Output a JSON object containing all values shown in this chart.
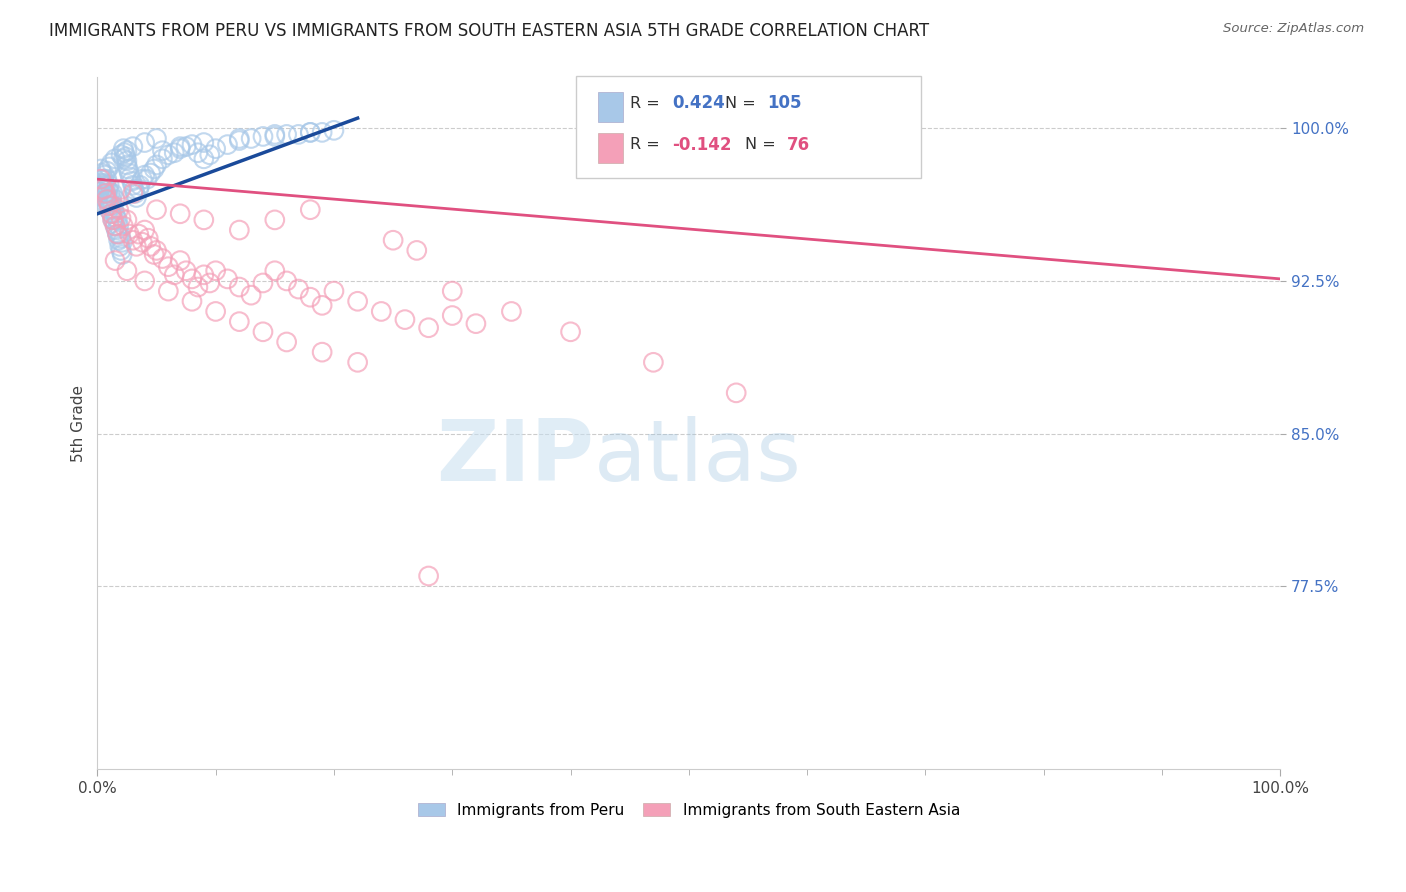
{
  "title": "IMMIGRANTS FROM PERU VS IMMIGRANTS FROM SOUTH EASTERN ASIA 5TH GRADE CORRELATION CHART",
  "source_text": "Source: ZipAtlas.com",
  "ylabel": "5th Grade",
  "legend_blue_R": "0.424",
  "legend_blue_N": "105",
  "legend_pink_R": "-0.142",
  "legend_pink_N": "76",
  "blue_color": "#a8c8e8",
  "pink_color": "#f4a0b8",
  "trendline_blue": "#1a4a9a",
  "trendline_pink": "#e05080",
  "watermark_zip": "ZIP",
  "watermark_atlas": "atlas",
  "ytick_labels": [
    "100.0%",
    "92.5%",
    "85.0%",
    "77.5%"
  ],
  "ytick_values": [
    1.0,
    0.925,
    0.85,
    0.775
  ],
  "ylim": [
    0.685,
    1.025
  ],
  "xlim": [
    0.0,
    1.0
  ],
  "blue_trend_x0": 0.0,
  "blue_trend_y0": 0.958,
  "blue_trend_x1": 0.22,
  "blue_trend_y1": 1.005,
  "pink_trend_x0": 0.0,
  "pink_trend_y0": 0.975,
  "pink_trend_x1": 1.0,
  "pink_trend_y1": 0.926,
  "blue_scatter_x": [
    0.002,
    0.003,
    0.004,
    0.004,
    0.005,
    0.005,
    0.006,
    0.006,
    0.007,
    0.007,
    0.008,
    0.008,
    0.008,
    0.009,
    0.009,
    0.01,
    0.01,
    0.01,
    0.011,
    0.011,
    0.012,
    0.012,
    0.013,
    0.013,
    0.013,
    0.014,
    0.014,
    0.015,
    0.015,
    0.015,
    0.016,
    0.016,
    0.017,
    0.017,
    0.018,
    0.018,
    0.019,
    0.019,
    0.02,
    0.02,
    0.021,
    0.021,
    0.022,
    0.022,
    0.023,
    0.024,
    0.025,
    0.025,
    0.026,
    0.027,
    0.028,
    0.029,
    0.03,
    0.031,
    0.032,
    0.033,
    0.035,
    0.036,
    0.038,
    0.04,
    0.042,
    0.045,
    0.048,
    0.05,
    0.055,
    0.06,
    0.065,
    0.07,
    0.075,
    0.08,
    0.085,
    0.09,
    0.095,
    0.1,
    0.11,
    0.12,
    0.13,
    0.14,
    0.15,
    0.16,
    0.17,
    0.18,
    0.19,
    0.2,
    0.05,
    0.04,
    0.03,
    0.025,
    0.02,
    0.015,
    0.012,
    0.01,
    0.008,
    0.006,
    0.005,
    0.003,
    0.002,
    0.001,
    0.001,
    0.15,
    0.18,
    0.12,
    0.09,
    0.07,
    0.055
  ],
  "blue_scatter_y": [
    0.975,
    0.98,
    0.972,
    0.978,
    0.97,
    0.975,
    0.968,
    0.973,
    0.965,
    0.972,
    0.962,
    0.968,
    0.975,
    0.965,
    0.97,
    0.96,
    0.965,
    0.972,
    0.962,
    0.968,
    0.958,
    0.965,
    0.955,
    0.962,
    0.968,
    0.955,
    0.96,
    0.952,
    0.958,
    0.965,
    0.95,
    0.956,
    0.948,
    0.955,
    0.945,
    0.952,
    0.942,
    0.948,
    0.94,
    0.946,
    0.938,
    0.944,
    0.985,
    0.99,
    0.988,
    0.986,
    0.984,
    0.982,
    0.98,
    0.978,
    0.976,
    0.974,
    0.972,
    0.97,
    0.968,
    0.966,
    0.97,
    0.972,
    0.975,
    0.977,
    0.975,
    0.978,
    0.98,
    0.982,
    0.985,
    0.987,
    0.988,
    0.99,
    0.991,
    0.992,
    0.988,
    0.985,
    0.987,
    0.99,
    0.992,
    0.994,
    0.995,
    0.996,
    0.996,
    0.997,
    0.997,
    0.998,
    0.998,
    0.999,
    0.995,
    0.993,
    0.991,
    0.989,
    0.987,
    0.985,
    0.983,
    0.981,
    0.979,
    0.977,
    0.975,
    0.973,
    0.971,
    0.969,
    0.967,
    0.997,
    0.998,
    0.995,
    0.993,
    0.991,
    0.989
  ],
  "pink_scatter_x": [
    0.003,
    0.005,
    0.007,
    0.008,
    0.01,
    0.012,
    0.013,
    0.015,
    0.017,
    0.018,
    0.02,
    0.022,
    0.025,
    0.027,
    0.03,
    0.033,
    0.035,
    0.038,
    0.04,
    0.043,
    0.045,
    0.048,
    0.05,
    0.055,
    0.06,
    0.065,
    0.07,
    0.075,
    0.08,
    0.085,
    0.09,
    0.095,
    0.1,
    0.11,
    0.12,
    0.13,
    0.14,
    0.15,
    0.16,
    0.17,
    0.18,
    0.19,
    0.2,
    0.22,
    0.24,
    0.26,
    0.28,
    0.3,
    0.32,
    0.25,
    0.27,
    0.18,
    0.15,
    0.12,
    0.09,
    0.07,
    0.05,
    0.03,
    0.02,
    0.22,
    0.19,
    0.16,
    0.14,
    0.12,
    0.1,
    0.08,
    0.06,
    0.04,
    0.025,
    0.015,
    0.3,
    0.35,
    0.4,
    0.47,
    0.54,
    0.28
  ],
  "pink_scatter_y": [
    0.975,
    0.97,
    0.968,
    0.965,
    0.962,
    0.958,
    0.955,
    0.952,
    0.948,
    0.96,
    0.956,
    0.952,
    0.955,
    0.948,
    0.945,
    0.942,
    0.948,
    0.944,
    0.95,
    0.946,
    0.942,
    0.938,
    0.94,
    0.936,
    0.932,
    0.928,
    0.935,
    0.93,
    0.926,
    0.922,
    0.928,
    0.924,
    0.93,
    0.926,
    0.922,
    0.918,
    0.924,
    0.93,
    0.925,
    0.921,
    0.917,
    0.913,
    0.92,
    0.915,
    0.91,
    0.906,
    0.902,
    0.908,
    0.904,
    0.945,
    0.94,
    0.96,
    0.955,
    0.95,
    0.955,
    0.958,
    0.96,
    0.968,
    0.97,
    0.885,
    0.89,
    0.895,
    0.9,
    0.905,
    0.91,
    0.915,
    0.92,
    0.925,
    0.93,
    0.935,
    0.92,
    0.91,
    0.9,
    0.885,
    0.87,
    0.78
  ]
}
